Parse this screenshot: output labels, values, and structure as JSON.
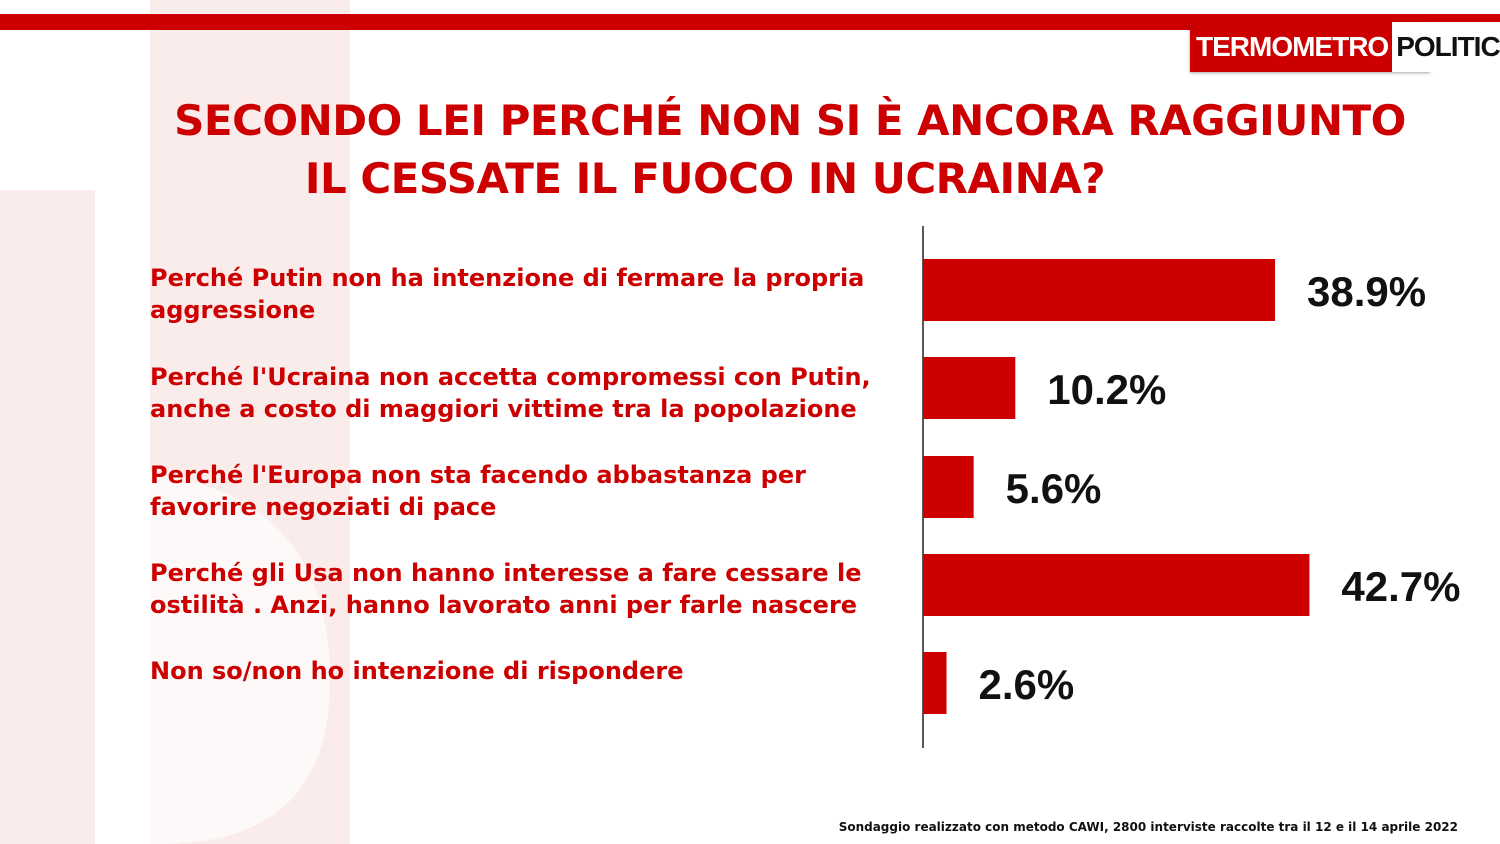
{
  "brand": {
    "logo_part1": "TERMOMETRO",
    "logo_part2": "POLITICO",
    "accent": "#cc0000"
  },
  "title_line1": "SECONDO LEI PERCHÉ NON SI È ANCORA RAGGIUNTO",
  "title_line2": "IL CESSATE IL FUOCO IN UCRAINA?",
  "footnote": "Sondaggio realizzato con metodo CAWI, 2800 interviste raccolte tra il 12 e il 14 aprile 2022",
  "chart_data": {
    "type": "bar",
    "orientation": "horizontal",
    "categories": [
      "Perché Putin non ha intenzione di fermare la propria aggressione",
      "Perché l'Ucraina non accetta compromessi con Putin, anche a costo di maggiori vittime tra la popolazione",
      "Perché l'Europa non sta facendo abbastanza per favorire negoziati di pace",
      "Perché gli Usa non hanno interesse a fare cessare le ostilità . Anzi, hanno lavorato anni per farle nascere",
      "Non so/non ho intenzione di rispondere"
    ],
    "values": [
      38.9,
      10.2,
      5.6,
      42.7,
      2.6
    ],
    "value_labels": [
      "38.9%",
      "10.2%",
      "5.6%",
      "42.7%",
      "2.6%"
    ],
    "xlim": [
      0,
      100
    ],
    "grid": false,
    "bar_color": "#cc0000"
  }
}
